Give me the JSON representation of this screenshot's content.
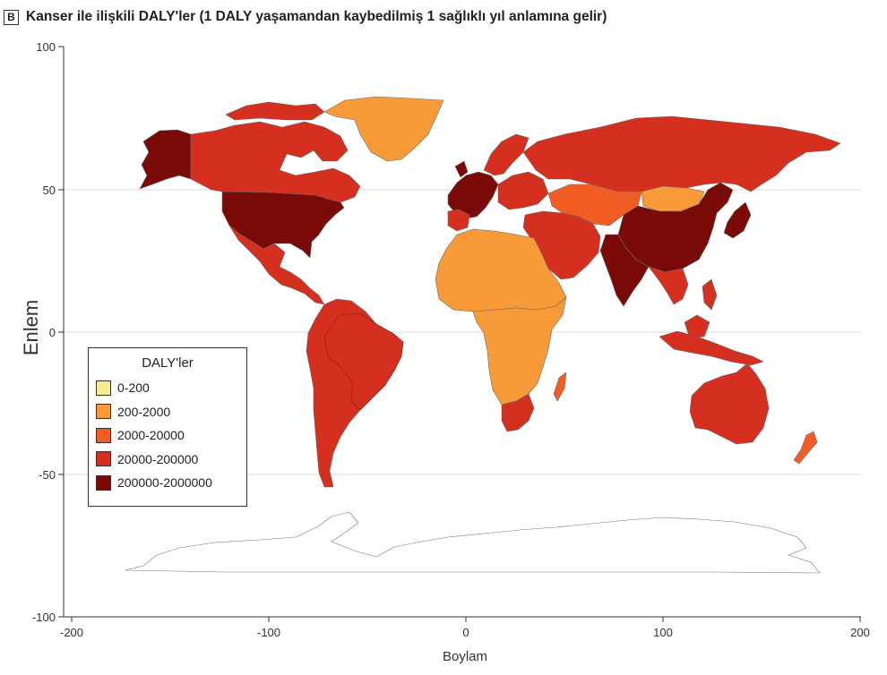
{
  "header": {
    "panel_letter": "B",
    "title": "Kanser ile ilişkili DALY'ler (1 DALY yaşamandan kaybedilmiş 1 sağlıklı yıl anlamına gelir)"
  },
  "axes": {
    "xlabel": "Boylam",
    "ylabel": "Enlem",
    "xlim": [
      -200,
      200
    ],
    "ylim": [
      -100,
      100
    ],
    "x_ticks": [
      "-200",
      "-100",
      "0",
      "100",
      "200"
    ],
    "y_ticks": [
      "100",
      "50",
      "0",
      "-50",
      "-100"
    ],
    "grid": "horizontal"
  },
  "legend": {
    "title": "DALY'ler",
    "placement": "bottom-left",
    "items": [
      {
        "label": "0-200",
        "color": "#f4eb99"
      },
      {
        "label": "200-2000",
        "color": "#f89a38"
      },
      {
        "label": "2000-20000",
        "color": "#f15d23"
      },
      {
        "label": "20000-200000",
        "color": "#d42f1f"
      },
      {
        "label": "200000-2000000",
        "color": "#7a0a07"
      }
    ]
  },
  "regions": [
    {
      "name": "Alaska",
      "category": "200000-2000000"
    },
    {
      "name": "Canada",
      "category": "20000-200000"
    },
    {
      "name": "United States",
      "category": "200000-2000000"
    },
    {
      "name": "Mexico and Central America",
      "category": "20000-200000"
    },
    {
      "name": "Greenland",
      "category": "200-2000"
    },
    {
      "name": "South America",
      "category": "20000-200000"
    },
    {
      "name": "Brazil",
      "category": "20000-200000"
    },
    {
      "name": "Western Europe",
      "category": "200000-2000000"
    },
    {
      "name": "Eastern Europe",
      "category": "20000-200000"
    },
    {
      "name": "Russia",
      "category": "20000-200000"
    },
    {
      "name": "Kazakhstan and Central Asia",
      "category": "2000-20000"
    },
    {
      "name": "Mongolia",
      "category": "200-2000"
    },
    {
      "name": "China",
      "category": "200000-2000000"
    },
    {
      "name": "India",
      "category": "200000-2000000"
    },
    {
      "name": "Japan",
      "category": "200000-2000000"
    },
    {
      "name": "Middle East",
      "category": "20000-200000"
    },
    {
      "name": "North Africa",
      "category": "200-2000"
    },
    {
      "name": "Central Africa",
      "category": "200-2000"
    },
    {
      "name": "Southern Africa",
      "category": "20000-200000"
    },
    {
      "name": "Madagascar",
      "category": "2000-20000"
    },
    {
      "name": "Southeast Asia",
      "category": "20000-200000"
    },
    {
      "name": "Indonesia",
      "category": "20000-200000"
    },
    {
      "name": "Australia",
      "category": "20000-200000"
    },
    {
      "name": "New Zealand",
      "category": "2000-20000"
    },
    {
      "name": "Antarctica",
      "category": "no data"
    }
  ]
}
